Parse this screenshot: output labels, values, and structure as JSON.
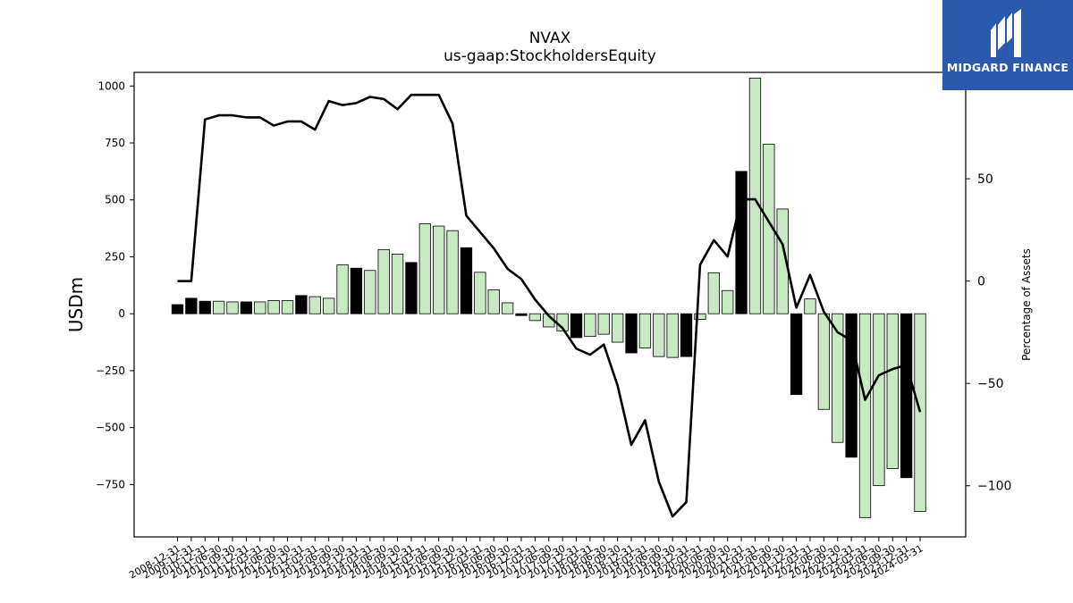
{
  "chart_data": {
    "type": "bar+line",
    "title": "NVAX",
    "subtitle": "us-gaap:StockholdersEquity",
    "ylabel": "USDm",
    "ylabel_right": "Percentage of Assets",
    "ylim": [
      -980,
      1060
    ],
    "ylim_right": [
      -125,
      102
    ],
    "yticks": [
      -750,
      -500,
      -250,
      0,
      250,
      500,
      750,
      1000
    ],
    "yticks_right": [
      -100,
      -50,
      0,
      50
    ],
    "categories": [
      "2008-12-31",
      "2009-12-31",
      "2010-12-31",
      "2011-06-30",
      "2011-09-30",
      "2011-12-31",
      "2012-03-31",
      "2012-06-30",
      "2012-09-30",
      "2012-12-31",
      "2013-03-31",
      "2013-06-30",
      "2013-09-30",
      "2013-12-31",
      "2014-03-31",
      "2014-06-30",
      "2014-09-30",
      "2014-12-31",
      "2015-03-31",
      "2015-06-30",
      "2015-09-30",
      "2015-12-31",
      "2016-03-31",
      "2016-06-30",
      "2016-09-30",
      "2016-12-31",
      "2017-03-31",
      "2017-06-30",
      "2017-09-30",
      "2017-12-31",
      "2018-03-31",
      "2018-06-30",
      "2018-09-30",
      "2018-12-31",
      "2019-03-31",
      "2019-06-30",
      "2019-09-30",
      "2019-12-31",
      "2020-03-31",
      "2020-06-30",
      "2020-09-30",
      "2020-12-31",
      "2021-03-31",
      "2021-06-30",
      "2021-09-30",
      "2021-12-31",
      "2022-03-31",
      "2022-06-30",
      "2022-09-30",
      "2022-12-31",
      "2023-03-31",
      "2023-06-30",
      "2023-09-30",
      "2023-12-31",
      "2024-03-31"
    ],
    "xtick_labels": [
      "2008-12-31",
      "2009-12-31",
      "2010-12-31",
      "2011-06-30",
      "2011-09-30",
      "2011-12-31",
      "2012-03-31",
      "2012-06-30",
      "2012-09-30",
      "2012-12-31",
      "2013-03-31",
      "2013-06-30",
      "2013-09-30",
      "2013-12-31",
      "2014-03-31",
      "2014-06-30",
      "2014-09-30",
      "2014-12-31",
      "2015-03-31",
      "2015-06-30",
      "2015-09-30",
      "2015-12-31",
      "2016-03-31",
      "2016-06-30",
      "2016-09-30",
      "2016-12-31",
      "2017-03-31",
      "2017-06-30",
      "2017-09-30",
      "2017-12-31",
      "2018-03-31",
      "2018-06-30",
      "2018-09-30",
      "2018-12-31",
      "2019-03-31",
      "2019-06-30",
      "2019-09-30",
      "2019-12-31",
      "2020-03-31",
      "2020-06-30",
      "2020-09-30",
      "2020-12-31",
      "2021-03-31",
      "2021-06-30",
      "2021-09-30",
      "2021-12-31",
      "2022-03-31",
      "2022-06-30",
      "2022-09-30",
      "2022-12-31",
      "2023-03-31",
      "2023-06-30",
      "2023-09-30",
      "2023-12-31",
      "2024-03-31"
    ],
    "bar_series": {
      "values": [
        40,
        68,
        55,
        55,
        52,
        52,
        52,
        58,
        58,
        80,
        75,
        68,
        215,
        200,
        190,
        282,
        262,
        225,
        395,
        385,
        365,
        290,
        182,
        105,
        48,
        -8,
        -30,
        -58,
        -75,
        -105,
        -100,
        -90,
        -125,
        -172,
        -150,
        -188,
        -192,
        -188,
        -25,
        180,
        102,
        625,
        1035,
        745,
        460,
        -355,
        65,
        -420,
        -565,
        -630,
        -895,
        -755,
        -680,
        -720,
        -868
      ],
      "colors": [
        "#000000",
        "#000000",
        "#000000",
        "#c9e8c4",
        "#c9e8c4",
        "#000000",
        "#c9e8c4",
        "#c9e8c4",
        "#c9e8c4",
        "#000000",
        "#c9e8c4",
        "#c9e8c4",
        "#c9e8c4",
        "#000000",
        "#c9e8c4",
        "#c9e8c4",
        "#c9e8c4",
        "#000000",
        "#c9e8c4",
        "#c9e8c4",
        "#c9e8c4",
        "#000000",
        "#c9e8c4",
        "#c9e8c4",
        "#c9e8c4",
        "#000000",
        "#c9e8c4",
        "#c9e8c4",
        "#c9e8c4",
        "#000000",
        "#c9e8c4",
        "#c9e8c4",
        "#c9e8c4",
        "#000000",
        "#c9e8c4",
        "#c9e8c4",
        "#c9e8c4",
        "#000000",
        "#c9e8c4",
        "#c9e8c4",
        "#c9e8c4",
        "#000000",
        "#c9e8c4",
        "#c9e8c4",
        "#c9e8c4",
        "#000000",
        "#c9e8c4",
        "#c9e8c4",
        "#c9e8c4",
        "#000000",
        "#c9e8c4",
        "#c9e8c4",
        "#c9e8c4",
        "#000000",
        "#c9e8c4"
      ]
    },
    "line_series": {
      "values": [
        0,
        0,
        79,
        81,
        81,
        80,
        80,
        76,
        78,
        78,
        74,
        88,
        86,
        87,
        90,
        89,
        84,
        91,
        91,
        91,
        77,
        32,
        24,
        16,
        6,
        1,
        -9,
        -17,
        -23,
        -33,
        -36,
        -31,
        -51,
        -80,
        -68,
        -98,
        -115,
        -108,
        8,
        20,
        12,
        40,
        40,
        29,
        18,
        -13,
        3,
        -15,
        -25,
        -29,
        -58,
        -46,
        -43,
        -41,
        -64
      ],
      "color": "#000000"
    },
    "colors": {
      "bar_positive_light": "#c9e8c4",
      "bar_dark": "#000000",
      "line": "#000000"
    }
  },
  "logo": {
    "text": "MIDGARD FINANCE",
    "background": "#2b5aad",
    "icon": "midgard-m-icon"
  }
}
